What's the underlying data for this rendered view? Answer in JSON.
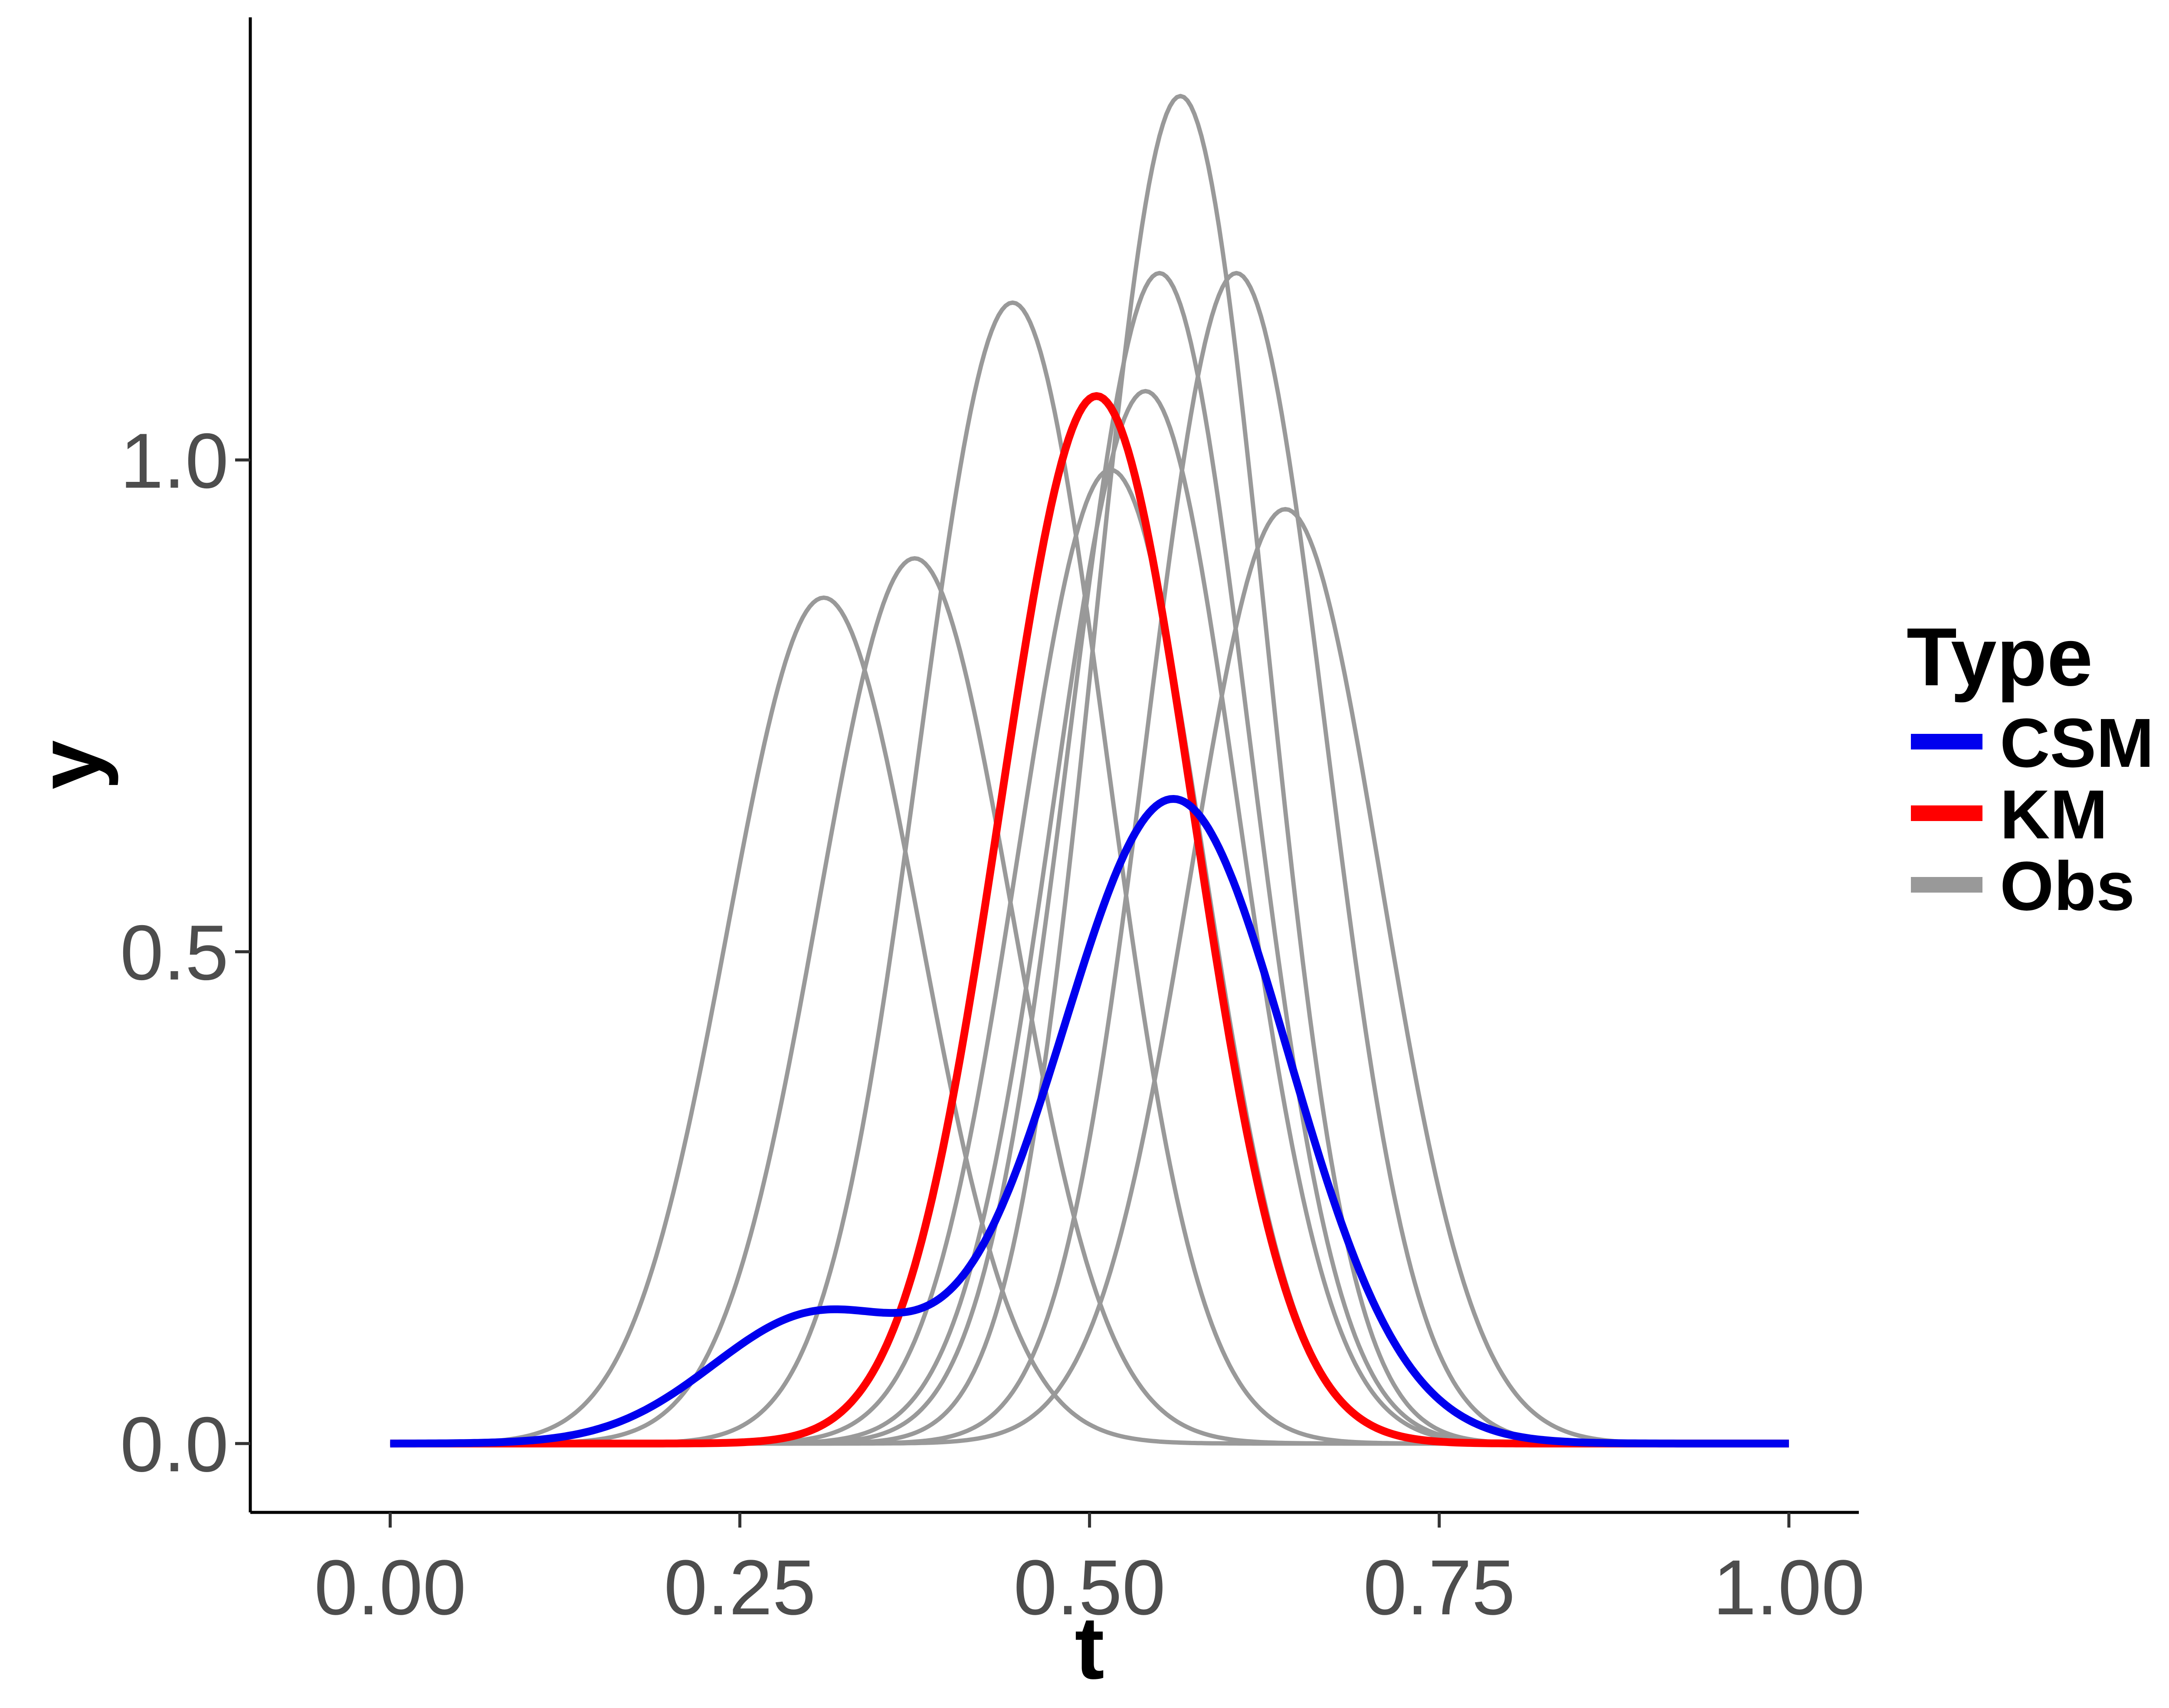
{
  "chart_data": {
    "type": "line",
    "xlabel": "t",
    "ylabel": "y",
    "xlim": [
      -0.1,
      1.05
    ],
    "ylim": [
      -0.07,
      1.45
    ],
    "x_ticks": [
      {
        "value": 0.0,
        "label": "0.00"
      },
      {
        "value": 0.25,
        "label": "0.25"
      },
      {
        "value": 0.5,
        "label": "0.50"
      },
      {
        "value": 0.75,
        "label": "0.75"
      },
      {
        "value": 1.0,
        "label": "1.00"
      }
    ],
    "y_ticks": [
      {
        "value": 0.0,
        "label": "0.0"
      },
      {
        "value": 0.5,
        "label": "0.5"
      },
      {
        "value": 1.0,
        "label": "1.0"
      }
    ],
    "grid": false,
    "legend": {
      "title": "Type",
      "position": "right",
      "entries": [
        {
          "label": "CSM",
          "color": "#0000ee"
        },
        {
          "label": "KM",
          "color": "#ff0000"
        },
        {
          "label": "Obs",
          "color": "#999999"
        }
      ]
    },
    "series": [
      {
        "name": "Obs",
        "color": "#999999",
        "shape": "gaussian",
        "curves": [
          {
            "center": 0.31,
            "peak": 0.86,
            "sd": 0.069
          },
          {
            "center": 0.375,
            "peak": 0.9,
            "sd": 0.069
          },
          {
            "center": 0.445,
            "peak": 1.16,
            "sd": 0.067
          },
          {
            "center": 0.515,
            "peak": 0.99,
            "sd": 0.066
          },
          {
            "center": 0.54,
            "peak": 1.07,
            "sd": 0.066
          },
          {
            "center": 0.55,
            "peak": 1.19,
            "sd": 0.064
          },
          {
            "center": 0.565,
            "peak": 1.37,
            "sd": 0.061
          },
          {
            "center": 0.605,
            "peak": 1.19,
            "sd": 0.064
          },
          {
            "center": 0.64,
            "peak": 0.95,
            "sd": 0.068
          }
        ]
      },
      {
        "name": "KM",
        "color": "#ff0000",
        "shape": "gaussian",
        "curves": [
          {
            "center": 0.505,
            "peak": 1.065,
            "sd": 0.069
          }
        ]
      },
      {
        "name": "CSM",
        "color": "#0000ee",
        "shape": "gaussian-mixture",
        "curves": [
          {
            "center": 0.305,
            "peak": 0.13,
            "sd": 0.075
          },
          {
            "center": 0.56,
            "peak": 0.655,
            "sd": 0.082
          }
        ]
      }
    ]
  }
}
